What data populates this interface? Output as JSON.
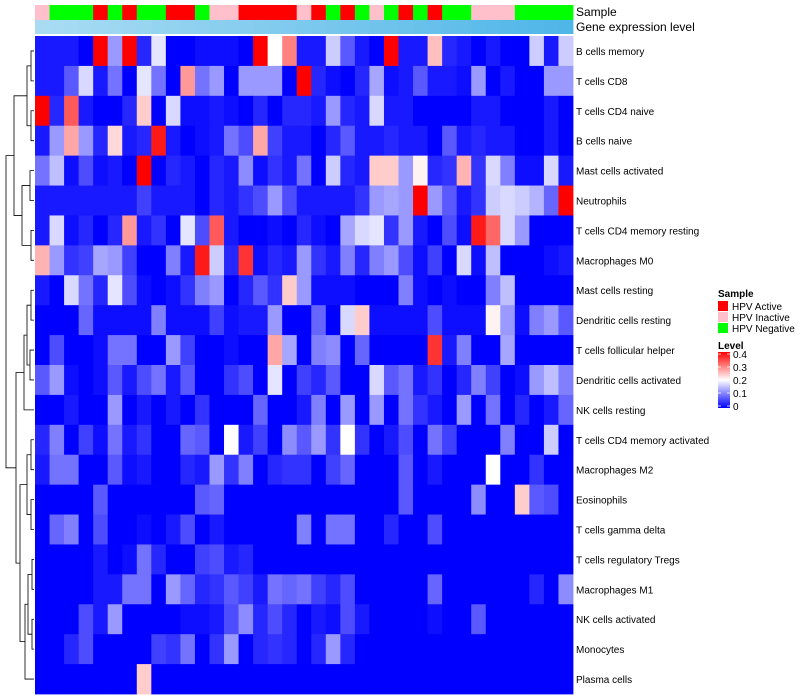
{
  "chart_data": {
    "type": "heatmap",
    "annotation_titles": {
      "sample": "Sample",
      "expression": "Gene expression level"
    },
    "row_labels": [
      "B cells memory",
      "T cells CD8",
      "T cells CD4 naive",
      "B cells naive",
      "Mast cells activated",
      "Neutrophils",
      "T cells CD4 memory resting",
      "Macrophages M0",
      "Mast cells resting",
      "Dendritic cells resting",
      "T cells follicular helper",
      "Dendritic cells activated",
      "NK cells resting",
      "T cells CD4 memory activated",
      "Macrophages M2",
      "Eosinophils",
      "T cells gamma delta",
      "T cells regulatory  Tregs",
      "Macrophages M1",
      "NK cells activated",
      "Monocytes",
      "Plasma cells"
    ],
    "sample_groups": [
      "Inactive",
      "Negative",
      "Negative",
      "Negative",
      "Active",
      "Negative",
      "Active",
      "Negative",
      "Negative",
      "Active",
      "Active",
      "Negative",
      "Inactive",
      "Inactive",
      "Active",
      "Active",
      "Active",
      "Active",
      "Inactive",
      "Active",
      "Negative",
      "Active",
      "Negative",
      "Inactive",
      "Negative",
      "Active",
      "Negative",
      "Active",
      "Negative",
      "Negative",
      "Inactive",
      "Inactive",
      "Inactive",
      "Negative",
      "Negative",
      "Negative",
      "Negative"
    ],
    "expression_gradient": {
      "low": "#a9dcf3",
      "high": "#4fb6e8"
    },
    "values": [
      [
        0.02,
        0.02,
        0.02,
        0.0,
        0.4,
        0.12,
        0.42,
        0.03,
        0.18,
        0.0,
        0.0,
        0.01,
        0.01,
        0.01,
        0.0,
        0.41,
        0.2,
        0.3,
        0.02,
        0.02,
        0.16,
        0.07,
        0.02,
        0.0,
        0.41,
        0.02,
        0.02,
        0.25,
        0.03,
        0.02,
        0.0,
        0.02,
        0.0,
        0.0,
        0.16,
        0.02,
        0.16
      ],
      [
        0.02,
        0.02,
        0.07,
        0.17,
        0.02,
        0.09,
        0.0,
        0.18,
        0.09,
        0.0,
        0.28,
        0.09,
        0.12,
        0.0,
        0.12,
        0.12,
        0.12,
        0.0,
        0.41,
        0.03,
        0.01,
        0.0,
        0.03,
        0.13,
        0.01,
        0.02,
        0.07,
        0.02,
        0.02,
        0.01,
        0.12,
        0.0,
        0.02,
        0.0,
        0.0,
        0.12,
        0.12
      ],
      [
        0.41,
        0.03,
        0.33,
        0.02,
        0.0,
        0.0,
        0.03,
        0.24,
        0.0,
        0.17,
        0.01,
        0.01,
        0.02,
        0.01,
        0.0,
        0.03,
        0.0,
        0.03,
        0.03,
        0.02,
        0.12,
        0.03,
        0.02,
        0.17,
        0.02,
        0.02,
        0.0,
        0.0,
        0.0,
        0.0,
        0.02,
        0.02,
        0.0,
        0.0,
        0.0,
        0.02,
        0.0
      ],
      [
        0.02,
        0.12,
        0.27,
        0.12,
        0.03,
        0.23,
        0.02,
        0.03,
        0.38,
        0.02,
        0.0,
        0.01,
        0.02,
        0.09,
        0.06,
        0.27,
        0.05,
        0.02,
        0.02,
        0.0,
        0.03,
        0.07,
        0.02,
        0.02,
        0.03,
        0.02,
        0.02,
        0.0,
        0.07,
        0.02,
        0.03,
        0.02,
        0.02,
        0.0,
        0.0,
        0.02,
        0.0
      ],
      [
        0.09,
        0.15,
        0.01,
        0.06,
        0.01,
        0.02,
        0.0,
        0.42,
        0.0,
        0.03,
        0.02,
        0.0,
        0.03,
        0.02,
        0.11,
        0.01,
        0.04,
        0.02,
        0.09,
        0.0,
        0.16,
        0.03,
        0.02,
        0.24,
        0.24,
        0.12,
        0.21,
        0.03,
        0.04,
        0.26,
        0.04,
        0.17,
        0.1,
        0.01,
        0.01,
        0.17,
        0.02
      ],
      [
        0.02,
        0.02,
        0.02,
        0.02,
        0.02,
        0.02,
        0.02,
        0.05,
        0.02,
        0.02,
        0.02,
        0.0,
        0.03,
        0.02,
        0.04,
        0.06,
        0.12,
        0.06,
        0.02,
        0.02,
        0.02,
        0.02,
        0.04,
        0.12,
        0.13,
        0.12,
        0.42,
        0.12,
        0.07,
        0.02,
        0.04,
        0.16,
        0.17,
        0.16,
        0.14,
        0.08,
        0.42
      ],
      [
        0.02,
        0.17,
        0.01,
        0.03,
        0.0,
        0.03,
        0.28,
        0.02,
        0.04,
        0.0,
        0.18,
        0.06,
        0.33,
        0.02,
        0.0,
        0.0,
        0.01,
        0.0,
        0.03,
        0.01,
        0.0,
        0.13,
        0.17,
        0.18,
        0.04,
        0.12,
        0.02,
        0.0,
        0.06,
        0.01,
        0.38,
        0.32,
        0.17,
        0.12,
        0.0,
        0.0,
        0.0
      ],
      [
        0.26,
        0.12,
        0.04,
        0.05,
        0.13,
        0.12,
        0.05,
        0.0,
        0.0,
        0.1,
        0.02,
        0.38,
        0.16,
        0.03,
        0.36,
        0.01,
        0.03,
        0.02,
        0.12,
        0.04,
        0.02,
        0.1,
        0.03,
        0.1,
        0.12,
        0.06,
        0.01,
        0.05,
        0.0,
        0.17,
        0.01,
        0.15,
        0.0,
        0.0,
        0.0,
        0.01,
        0.02
      ],
      [
        0.02,
        0.0,
        0.17,
        0.09,
        0.03,
        0.18,
        0.06,
        0.01,
        0.0,
        0.01,
        0.04,
        0.1,
        0.12,
        0.0,
        0.03,
        0.07,
        0.04,
        0.24,
        0.12,
        0.01,
        0.01,
        0.01,
        0.0,
        0.0,
        0.0,
        0.1,
        0.01,
        0.0,
        0.01,
        0.0,
        0.0,
        0.1,
        0.15,
        0.0,
        0.0,
        0.0,
        0.0
      ],
      [
        0.0,
        0.0,
        0.0,
        0.08,
        0.01,
        0.01,
        0.01,
        0.01,
        0.1,
        0.01,
        0.01,
        0.01,
        0.05,
        0.01,
        0.02,
        0.02,
        0.12,
        0.0,
        0.0,
        0.08,
        0.0,
        0.17,
        0.24,
        0.01,
        0.01,
        0.01,
        0.01,
        0.06,
        0.01,
        0.01,
        0.01,
        0.21,
        0.12,
        0.01,
        0.1,
        0.12,
        0.07
      ],
      [
        0.0,
        0.06,
        0.0,
        0.0,
        0.01,
        0.09,
        0.09,
        0.0,
        0.0,
        0.12,
        0.05,
        0.0,
        0.0,
        0.01,
        0.0,
        0.0,
        0.27,
        0.13,
        0.0,
        0.1,
        0.11,
        0.0,
        0.08,
        0.0,
        0.0,
        0.0,
        0.0,
        0.36,
        0.02,
        0.1,
        0.0,
        0.0,
        0.13,
        0.0,
        0.0,
        0.0,
        0.0
      ]
    ],
    "values_rest": [
      [
        0.07,
        0.12,
        0.01,
        0.0,
        0.01,
        0.07,
        0.02,
        0.06,
        0.09,
        0.02,
        0.07,
        0.0,
        0.0,
        0.04,
        0.06,
        0.0,
        0.18,
        0.0,
        0.05,
        0.03,
        0.07,
        0.0,
        0.0,
        0.17,
        0.07,
        0.09,
        0.02,
        0.04,
        0.0,
        0.03,
        0.1,
        0.05,
        0.0,
        0.01,
        0.12,
        0.15,
        0.1
      ],
      [
        0.0,
        0.0,
        0.02,
        0.0,
        0.0,
        0.12,
        0.0,
        0.02,
        0.0,
        0.02,
        0.0,
        0.04,
        0.0,
        0.0,
        0.0,
        0.08,
        0.0,
        0.0,
        0.02,
        0.1,
        0.0,
        0.12,
        0.0,
        0.12,
        0.0,
        0.09,
        0.04,
        0.02,
        0.0,
        0.12,
        0.0,
        0.09,
        0.0,
        0.03,
        0.0,
        0.02,
        0.08
      ],
      [
        0.03,
        0.1,
        0.0,
        0.05,
        0.01,
        0.09,
        0.02,
        0.04,
        0.0,
        0.0,
        0.08,
        0.07,
        0.0,
        0.2,
        0.02,
        0.05,
        0.0,
        0.11,
        0.07,
        0.12,
        0.04,
        0.2,
        0.04,
        0.0,
        0.02,
        0.06,
        0.0,
        0.09,
        0.05,
        0.0,
        0.0,
        0.0,
        0.1,
        0.0,
        0.0,
        0.16,
        0.0
      ],
      [
        0.02,
        0.09,
        0.09,
        0.0,
        0.0,
        0.07,
        0.01,
        0.02,
        0.0,
        0.0,
        0.03,
        0.02,
        0.12,
        0.04,
        0.1,
        0.0,
        0.03,
        0.04,
        0.04,
        0.0,
        0.05,
        0.08,
        0.0,
        0.0,
        0.0,
        0.07,
        0.0,
        0.02,
        0.0,
        0.0,
        0.0,
        0.2,
        0.0,
        0.0,
        0.04,
        0.0,
        0.0
      ],
      [
        0.0,
        0.0,
        0.0,
        0.0,
        0.07,
        0.0,
        0.0,
        0.0,
        0.0,
        0.0,
        0.0,
        0.07,
        0.08,
        0.0,
        0.0,
        0.0,
        0.0,
        0.0,
        0.0,
        0.0,
        0.0,
        0.0,
        0.0,
        0.0,
        0.0,
        0.07,
        0.0,
        0.0,
        0.0,
        0.0,
        0.11,
        0.0,
        0.0,
        0.24,
        0.07,
        0.06,
        0.0
      ],
      [
        0.0,
        0.08,
        0.1,
        0.0,
        0.06,
        0.0,
        0.0,
        0.01,
        0.0,
        0.02,
        0.06,
        0.0,
        0.02,
        0.0,
        0.0,
        0.0,
        0.0,
        0.0,
        0.1,
        0.0,
        0.09,
        0.09,
        0.0,
        0.0,
        0.03,
        0.0,
        0.0,
        0.06,
        0.0,
        0.0,
        0.0,
        0.0,
        0.0,
        0.0,
        0.0,
        0.0,
        0.0
      ],
      [
        0.0,
        0.0,
        0.0,
        0.0,
        0.02,
        0.0,
        0.01,
        0.09,
        0.03,
        0.0,
        0.0,
        0.05,
        0.06,
        0.02,
        0.03,
        0.0,
        0.0,
        0.0,
        0.0,
        0.0,
        0.0,
        0.0,
        0.0,
        0.0,
        0.0,
        0.0,
        0.0,
        0.0,
        0.0,
        0.0,
        0.0,
        0.0,
        0.0,
        0.0,
        0.0,
        0.0,
        0.0
      ],
      [
        0.0,
        0.0,
        0.0,
        0.0,
        0.02,
        0.02,
        0.09,
        0.09,
        0.0,
        0.12,
        0.08,
        0.03,
        0.04,
        0.07,
        0.05,
        0.02,
        0.09,
        0.08,
        0.09,
        0.05,
        0.03,
        0.06,
        0.0,
        0.0,
        0.0,
        0.0,
        0.0,
        0.08,
        0.0,
        0.0,
        0.0,
        0.0,
        0.0,
        0.0,
        0.03,
        0.0,
        0.11
      ],
      [
        0.0,
        0.0,
        0.0,
        0.06,
        0.02,
        0.12,
        0.0,
        0.0,
        0.0,
        0.0,
        0.01,
        0.01,
        0.02,
        0.06,
        0.11,
        0.03,
        0.06,
        0.03,
        0.0,
        0.02,
        0.01,
        0.06,
        0.02,
        0.0,
        0.0,
        0.0,
        0.0,
        0.01,
        0.0,
        0.0,
        0.07,
        0.0,
        0.0,
        0.0,
        0.0,
        0.0,
        0.0
      ],
      [
        0.0,
        0.0,
        0.03,
        0.06,
        0.0,
        0.0,
        0.0,
        0.0,
        0.05,
        0.04,
        0.09,
        0.0,
        0.04,
        0.12,
        0.0,
        0.03,
        0.04,
        0.03,
        0.0,
        0.03,
        0.12,
        0.03,
        0.0,
        0.0,
        0.0,
        0.0,
        0.0,
        0.0,
        0.0,
        0.0,
        0.0,
        0.0,
        0.0,
        0.0,
        0.0,
        0.0,
        0.0
      ],
      [
        0.0,
        0.0,
        0.0,
        0.0,
        0.0,
        0.0,
        0.0,
        0.24,
        0.0,
        0.0,
        0.0,
        0.0,
        0.0,
        0.0,
        0.0,
        0.0,
        0.0,
        0.0,
        0.0,
        0.0,
        0.0,
        0.0,
        0.0,
        0.0,
        0.0,
        0.0,
        0.0,
        0.0,
        0.0,
        0.0,
        0.0,
        0.0,
        0.0,
        0.0,
        0.0,
        0.0,
        0.0
      ]
    ],
    "legend": {
      "sample_title": "Sample",
      "sample_items": [
        {
          "key": "Active",
          "label": "HPV Active",
          "color": "#ff0000"
        },
        {
          "key": "Inactive",
          "label": "HPV Inactive",
          "color": "#ffc0cb"
        },
        {
          "key": "Negative",
          "label": "HPV Negative",
          "color": "#00ff00"
        }
      ],
      "level_title": "Level",
      "level_ticks": [
        "0.4",
        "0.3",
        "0.2",
        "0.1",
        "0"
      ],
      "level_range": [
        0,
        0.4
      ]
    },
    "color_scale": {
      "low": "#0000ff",
      "mid": "#ffffff",
      "high": "#ff0000",
      "mid_value": 0.2
    }
  }
}
